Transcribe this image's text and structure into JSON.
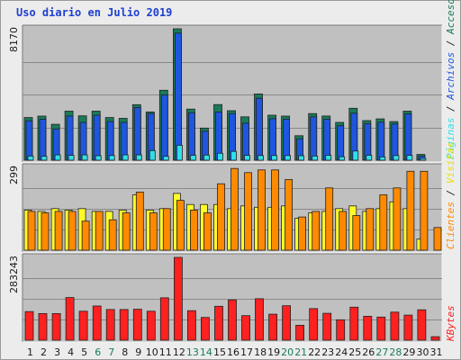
{
  "title": "Uso diario en Julio 2019",
  "colors": {
    "accesses": "#1a7a5a",
    "files": "#1f56e0",
    "pages": "#2ee0e8",
    "visits": "#fffb2a",
    "clients": "#ff8a00",
    "kbytes": "#ff2020",
    "day_label": "#1a1a1a",
    "weekend_label": "#1a7a5a",
    "panel": "#c0c0c0"
  },
  "legend": {
    "accesses": "Accesos",
    "files": "Archivos",
    "pages": "Páginas",
    "sep1": " / ",
    "sep2": " / ",
    "sep3": " / ",
    "visits": "Visitas",
    "clients": "Clientes",
    "kbytes": "KBytes"
  },
  "chart_data": {
    "type": "bar",
    "categories": [
      "1",
      "2",
      "3",
      "4",
      "5",
      "6",
      "7",
      "8",
      "9",
      "10",
      "11",
      "12",
      "13",
      "14",
      "15",
      "16",
      "17",
      "18",
      "19",
      "20",
      "21",
      "22",
      "23",
      "24",
      "25",
      "26",
      "27",
      "28",
      "29",
      "30",
      "31"
    ],
    "weekend_days": [
      "6",
      "7",
      "13",
      "14",
      "20",
      "21",
      "27",
      "28"
    ],
    "panels": [
      {
        "ymax": 8170,
        "ymax_label": "8170",
        "series": [
          {
            "key": "accesses",
            "values": [
              2650,
              2740,
              2230,
              3050,
              2760,
              3050,
              2650,
              2600,
              3450,
              3000,
              4350,
              8170,
              3180,
              2000,
              3460,
              3080,
              2700,
              4120,
              2800,
              2740,
              1520,
              2900,
              2750,
              2350,
              3230,
              2460,
              2570,
              2400,
              3050,
              360,
              null
            ]
          },
          {
            "key": "files",
            "values": [
              2450,
              2550,
              1950,
              2750,
              2350,
              2800,
              2400,
              2350,
              3280,
              2900,
              4050,
              7900,
              2950,
              1800,
              3000,
              2900,
              2300,
              3850,
              2580,
              2550,
              1330,
              2700,
              2550,
              2150,
              2920,
              2280,
              2360,
              2250,
              2880,
              260,
              null
            ]
          },
          {
            "key": "pages",
            "values": [
              260,
              240,
              330,
              300,
              330,
              280,
              290,
              330,
              330,
              600,
              240,
              930,
              300,
              320,
              430,
              550,
              300,
              290,
              290,
              290,
              280,
              260,
              300,
              210,
              570,
              310,
              200,
              290,
              300,
              80,
              null
            ]
          }
        ]
      },
      {
        "ymax": 299,
        "ymax_label": "299",
        "series": [
          {
            "key": "visits",
            "values": [
              145,
              140,
              150,
              145,
              150,
              140,
              140,
              145,
              200,
              145,
              150,
              205,
              165,
              165,
              165,
              150,
              160,
              155,
              155,
              160,
              115,
              135,
              140,
              150,
              160,
              140,
              150,
              175,
              150,
              40,
              null
            ]
          },
          {
            "key": "clients",
            "values": [
              140,
              135,
              140,
              140,
              105,
              140,
              110,
              135,
              210,
              135,
              150,
              180,
              145,
              135,
              240,
              295,
              280,
              290,
              290,
              255,
              120,
              140,
              225,
              140,
              125,
              150,
              200,
              225,
              285,
              285,
              82
            ]
          }
        ]
      },
      {
        "ymax": 283243,
        "ymax_label": "283243",
        "series": [
          {
            "key": "kbytes",
            "values": [
              98000,
              91000,
              91000,
              146000,
              99000,
              117000,
              105000,
              105000,
              106000,
              99000,
              145000,
              283243,
              101000,
              78000,
              116000,
              138000,
              84000,
              142000,
              89000,
              118000,
              51000,
              108000,
              92000,
              70000,
              113000,
              82000,
              79000,
              96000,
              86000,
              104000,
              12000
            ]
          }
        ]
      }
    ]
  }
}
